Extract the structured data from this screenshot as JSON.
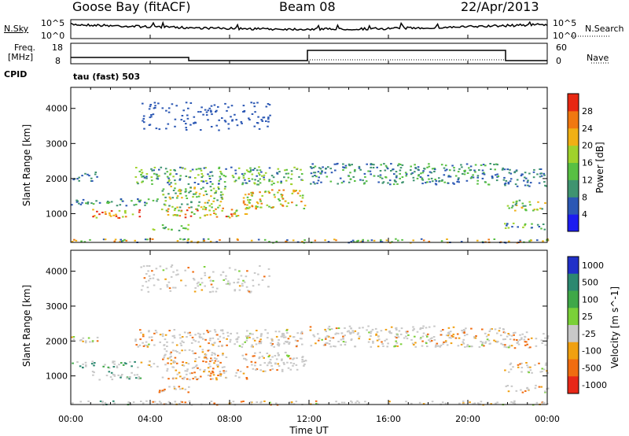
{
  "header": {
    "station": "Goose Bay (fitACF)",
    "beam": "Beam 08",
    "date": "22/Apr/2013"
  },
  "panels": {
    "sky": {
      "left_label": "N.Sky",
      "right_label": "N.Search",
      "left_ticks": [
        "10^5",
        "10^0"
      ],
      "right_ticks": [
        "10^5",
        "10^0"
      ]
    },
    "freq": {
      "left_label_top": "Freq.",
      "left_label_bottom": "[MHz]",
      "right_label": "Nave",
      "left_ticks": [
        "18",
        "8"
      ],
      "right_ticks": [
        "60",
        "0"
      ]
    },
    "cpid": {
      "label": "CPID",
      "value": "tau (fast) 503"
    }
  },
  "chart_data": [
    {
      "type": "heatmap",
      "title": "",
      "ylabel": "Slant Range [km]",
      "xlabel": "",
      "ylim": [
        180,
        4600
      ],
      "yticks": [
        "1000",
        "2000",
        "3000",
        "4000"
      ],
      "colorbar": {
        "label": "Power [dB]",
        "ticks": [
          "4",
          "8",
          "12",
          "16",
          "20",
          "24",
          "28"
        ],
        "colors": [
          "#1c1cf0",
          "#2c58b4",
          "#3f9470",
          "#58c043",
          "#a0d22c",
          "#f0b014",
          "#f07810",
          "#e82812"
        ]
      }
    },
    {
      "type": "heatmap",
      "title": "",
      "ylabel": "Slant Range [km]",
      "xlabel": "Time UT",
      "ylim": [
        180,
        4600
      ],
      "yticks": [
        "1000",
        "2000",
        "3000",
        "4000"
      ],
      "xticks": [
        "00:00",
        "04:00",
        "08:00",
        "12:00",
        "16:00",
        "20:00",
        "00:00"
      ],
      "colorbar": {
        "label": "Velocity [m s^-1]",
        "ticks": [
          "1000",
          "500",
          "100",
          "25",
          "-25",
          "-100",
          "-500",
          "-1000"
        ],
        "colors": [
          "#2030c8",
          "#2c8870",
          "#3fa848",
          "#7ad038",
          "#c8c8c8",
          "#f0a010",
          "#f06c10",
          "#e82818"
        ]
      }
    }
  ]
}
